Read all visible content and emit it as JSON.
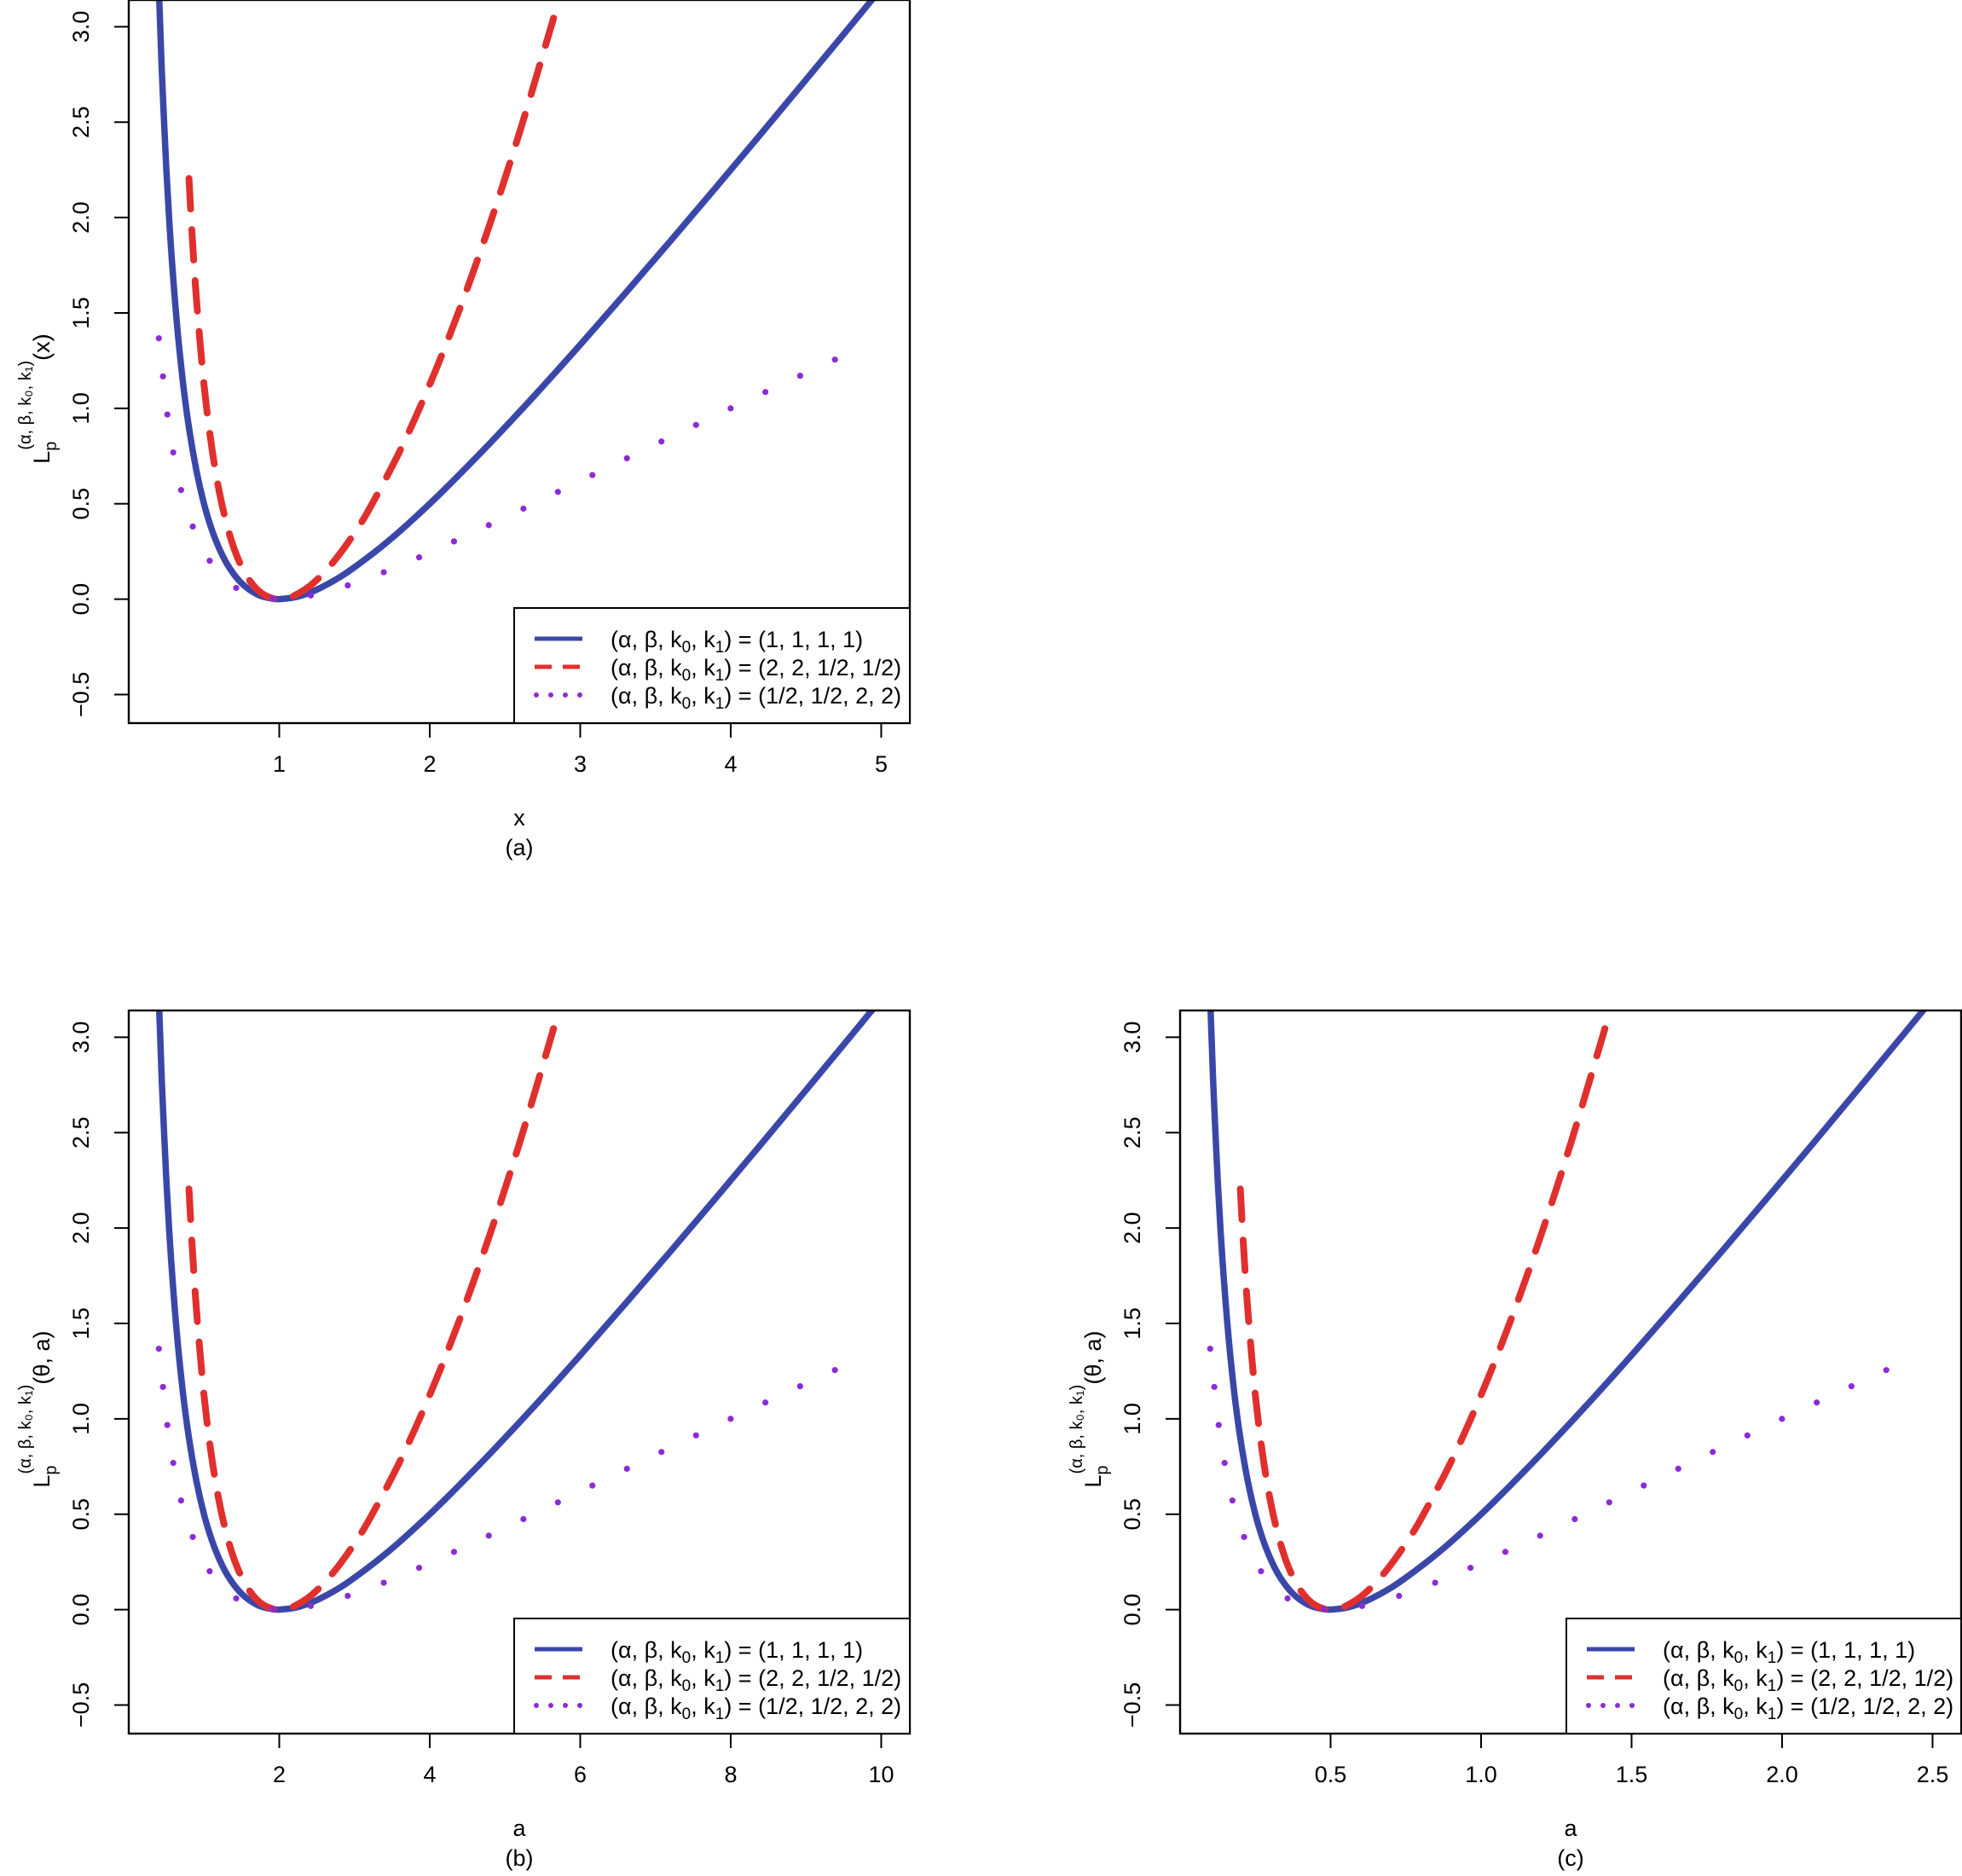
{
  "chart_data": [
    {
      "panel_label": "(a)",
      "type": "line",
      "xlabel": "x",
      "ylabel": {
        "main": "L",
        "sub": "p",
        "sup": "(α, β, k₀, k₁)",
        "arg": "(x)"
      },
      "xlim": [
        0.0,
        5.19
      ],
      "ylim": [
        -0.65,
        3.14
      ],
      "xticks": [
        1,
        2,
        3,
        4,
        5
      ],
      "xtick_labels": [
        "1",
        "2",
        "3",
        "4",
        "5"
      ],
      "yticks": [
        -0.5,
        0.0,
        0.5,
        1.0,
        1.5,
        2.0,
        2.5,
        3.0
      ],
      "ytick_labels": [
        "−0.5",
        "0.0",
        "0.5",
        "1.0",
        "1.5",
        "2.0",
        "2.5",
        "3.0"
      ],
      "grid": false,
      "legend_position": "bottom-right",
      "series": [
        {
          "name": "(α, β, k0, k1) = (1, 1, 1, 1)",
          "style": "solid",
          "color": "#3a47a9",
          "x": [
            0.19,
            0.2,
            0.22,
            0.25,
            0.28,
            0.32,
            0.36,
            0.4,
            0.45,
            0.5,
            0.55,
            0.6,
            0.65,
            0.7,
            0.75,
            0.8,
            0.85,
            0.9,
            0.95,
            1.0,
            1.1,
            1.2,
            1.3,
            1.4,
            1.5,
            1.7,
            1.9,
            2.1,
            2.4,
            2.7,
            3.0,
            3.3,
            3.6,
            3.9,
            4.2,
            4.5,
            4.8,
            5.1,
            5.15
          ],
          "y": [
            3.453,
            3.2,
            2.765,
            2.25,
            1.851,
            1.445,
            1.138,
            0.9,
            0.672,
            0.5,
            0.368,
            0.267,
            0.188,
            0.129,
            0.083,
            0.05,
            0.026,
            0.011,
            0.003,
            0.0,
            0.009,
            0.033,
            0.069,
            0.114,
            0.167,
            0.288,
            0.426,
            0.576,
            0.817,
            1.07,
            1.333,
            1.603,
            1.878,
            2.156,
            2.438,
            2.722,
            3.008,
            3.296,
            3.344
          ]
        },
        {
          "name": "(α, β, k0, k1) = (2, 2, 1/2, 1/2)",
          "style": "dashed",
          "color": "#e0302e",
          "x": [
            0.4,
            0.42,
            0.45,
            0.5,
            0.55,
            0.6,
            0.65,
            0.7,
            0.75,
            0.8,
            0.85,
            0.9,
            0.95,
            1.0,
            1.05,
            1.1,
            1.2,
            1.3,
            1.4,
            1.5,
            1.6,
            1.8,
            2.0,
            2.2,
            2.4,
            2.6,
            2.8,
            2.82
          ],
          "y": [
            2.205,
            1.923,
            1.571,
            1.125,
            0.804,
            0.569,
            0.395,
            0.265,
            0.17,
            0.101,
            0.053,
            0.022,
            0.005,
            0.0,
            0.004,
            0.018,
            0.067,
            0.141,
            0.235,
            0.347,
            0.475,
            0.774,
            1.125,
            1.523,
            1.967,
            2.454,
            2.984,
            3.04
          ]
        },
        {
          "name": "(α, β, k0, k1) = (1/2, 1/2, 2, 2)",
          "style": "dotted",
          "color": "#8b2bd6",
          "x": [
            0.2,
            0.25,
            0.3,
            0.35,
            0.4,
            0.5,
            0.6,
            0.7,
            0.8,
            0.9,
            1.0,
            1.2,
            1.4,
            1.6,
            1.8,
            2.0,
            2.5,
            3.0,
            3.5,
            4.0,
            4.5,
            4.9
          ],
          "y": [
            1.367,
            1.0,
            0.747,
            0.563,
            0.427,
            0.243,
            0.131,
            0.064,
            0.025,
            0.006,
            0.0,
            0.017,
            0.057,
            0.111,
            0.174,
            0.243,
            0.427,
            0.619,
            0.811,
            1.0,
            1.185,
            1.331
          ]
        }
      ]
    },
    {
      "panel_label": "(b)",
      "type": "line",
      "xlabel": "a",
      "ylabel": {
        "main": "L",
        "sub": "p",
        "sup": "(α, β, k₀, k₁)",
        "arg": "(θ, a)"
      },
      "xlim": [
        0.0,
        10.38
      ],
      "ylim": [
        -0.65,
        3.14
      ],
      "xticks": [
        2,
        4,
        6,
        8,
        10
      ],
      "xtick_labels": [
        "2",
        "4",
        "6",
        "8",
        "10"
      ],
      "yticks": [
        -0.5,
        0.0,
        0.5,
        1.0,
        1.5,
        2.0,
        2.5,
        3.0
      ],
      "ytick_labels": [
        "−0.5",
        "0.0",
        "0.5",
        "1.0",
        "1.5",
        "2.0",
        "2.5",
        "3.0"
      ],
      "grid": false,
      "legend_position": "bottom-right",
      "series": [
        {
          "name": "(α, β, k0, k1) = (1, 1, 1, 1)",
          "style": "solid",
          "color": "#3a47a9",
          "x": [
            0.38,
            0.4,
            0.44,
            0.5,
            0.56,
            0.64,
            0.72,
            0.8,
            0.9,
            1.0,
            1.1,
            1.2,
            1.3,
            1.4,
            1.5,
            1.6,
            1.7,
            1.8,
            1.9,
            2.0,
            2.2,
            2.4,
            2.6,
            2.8,
            3.0,
            3.4,
            3.8,
            4.2,
            4.8,
            5.4,
            6.0,
            6.6,
            7.2,
            7.8,
            8.4,
            9.0,
            9.6,
            10.2,
            10.3
          ],
          "y": [
            3.453,
            3.2,
            2.765,
            2.25,
            1.851,
            1.445,
            1.138,
            0.9,
            0.672,
            0.5,
            0.368,
            0.267,
            0.188,
            0.129,
            0.083,
            0.05,
            0.026,
            0.011,
            0.003,
            0.0,
            0.009,
            0.033,
            0.069,
            0.114,
            0.167,
            0.288,
            0.426,
            0.576,
            0.817,
            1.07,
            1.333,
            1.603,
            1.878,
            2.156,
            2.438,
            2.722,
            3.008,
            3.296,
            3.344
          ]
        },
        {
          "name": "(α, β, k0, k1) = (2, 2, 1/2, 1/2)",
          "style": "dashed",
          "color": "#e0302e",
          "x": [
            0.8,
            0.84,
            0.9,
            1.0,
            1.1,
            1.2,
            1.3,
            1.4,
            1.5,
            1.6,
            1.7,
            1.8,
            1.9,
            2.0,
            2.1,
            2.2,
            2.4,
            2.6,
            2.8,
            3.0,
            3.2,
            3.6,
            4.0,
            4.4,
            4.8,
            5.2,
            5.6,
            5.64
          ],
          "y": [
            2.205,
            1.923,
            1.571,
            1.125,
            0.804,
            0.569,
            0.395,
            0.265,
            0.17,
            0.101,
            0.053,
            0.022,
            0.005,
            0.0,
            0.004,
            0.018,
            0.067,
            0.141,
            0.235,
            0.347,
            0.475,
            0.774,
            1.125,
            1.523,
            1.967,
            2.454,
            2.984,
            3.04
          ]
        },
        {
          "name": "(α, β, k0, k1) = (1/2, 1/2, 2, 2)",
          "style": "dotted",
          "color": "#8b2bd6",
          "x": [
            0.4,
            0.5,
            0.6,
            0.7,
            0.8,
            1.0,
            1.2,
            1.4,
            1.6,
            1.8,
            2.0,
            2.4,
            2.8,
            3.2,
            3.6,
            4.0,
            5.0,
            6.0,
            7.0,
            8.0,
            9.0,
            9.8
          ],
          "y": [
            1.367,
            1.0,
            0.747,
            0.563,
            0.427,
            0.243,
            0.131,
            0.064,
            0.025,
            0.006,
            0.0,
            0.017,
            0.057,
            0.111,
            0.174,
            0.243,
            0.427,
            0.619,
            0.811,
            1.0,
            1.185,
            1.331
          ]
        }
      ]
    },
    {
      "panel_label": "(c)",
      "type": "line",
      "xlabel": "a",
      "ylabel": {
        "main": "L",
        "sub": "p",
        "sup": "(α, β, k₀, k₁)",
        "arg": "(θ, a)"
      },
      "xlim": [
        0.0,
        2.595
      ],
      "ylim": [
        -0.65,
        3.14
      ],
      "xticks": [
        0.5,
        1.0,
        1.5,
        2.0,
        2.5
      ],
      "xtick_labels": [
        "0.5",
        "1.0",
        "1.5",
        "2.0",
        "2.5"
      ],
      "yticks": [
        -0.5,
        0.0,
        0.5,
        1.0,
        1.5,
        2.0,
        2.5,
        3.0
      ],
      "ytick_labels": [
        "−0.5",
        "0.0",
        "0.5",
        "1.0",
        "1.5",
        "2.0",
        "2.5",
        "3.0"
      ],
      "grid": false,
      "legend_position": "bottom-right",
      "series": [
        {
          "name": "(α, β, k0, k1) = (1, 1, 1, 1)",
          "style": "solid",
          "color": "#3a47a9",
          "x": [
            0.095,
            0.1,
            0.11,
            0.125,
            0.14,
            0.16,
            0.18,
            0.2,
            0.225,
            0.25,
            0.275,
            0.3,
            0.325,
            0.35,
            0.375,
            0.4,
            0.425,
            0.45,
            0.475,
            0.5,
            0.55,
            0.6,
            0.65,
            0.7,
            0.75,
            0.85,
            0.95,
            1.05,
            1.2,
            1.35,
            1.5,
            1.65,
            1.8,
            1.95,
            2.1,
            2.25,
            2.4,
            2.55,
            2.575
          ],
          "y": [
            3.453,
            3.2,
            2.765,
            2.25,
            1.851,
            1.445,
            1.138,
            0.9,
            0.672,
            0.5,
            0.368,
            0.267,
            0.188,
            0.129,
            0.083,
            0.05,
            0.026,
            0.011,
            0.003,
            0.0,
            0.009,
            0.033,
            0.069,
            0.114,
            0.167,
            0.288,
            0.426,
            0.576,
            0.817,
            1.07,
            1.333,
            1.603,
            1.878,
            2.156,
            2.438,
            2.722,
            3.008,
            3.296,
            3.344
          ]
        },
        {
          "name": "(α, β, k0, k1) = (2, 2, 1/2, 1/2)",
          "style": "dashed",
          "color": "#e0302e",
          "x": [
            0.2,
            0.21,
            0.225,
            0.25,
            0.275,
            0.3,
            0.325,
            0.35,
            0.375,
            0.4,
            0.425,
            0.45,
            0.475,
            0.5,
            0.525,
            0.55,
            0.6,
            0.65,
            0.7,
            0.75,
            0.8,
            0.9,
            1.0,
            1.1,
            1.2,
            1.3,
            1.4,
            1.41
          ],
          "y": [
            2.205,
            1.923,
            1.571,
            1.125,
            0.804,
            0.569,
            0.395,
            0.265,
            0.17,
            0.101,
            0.053,
            0.022,
            0.005,
            0.0,
            0.004,
            0.018,
            0.067,
            0.141,
            0.235,
            0.347,
            0.475,
            0.774,
            1.125,
            1.523,
            1.967,
            2.454,
            2.984,
            3.04
          ]
        },
        {
          "name": "(α, β, k0, k1) = (1/2, 1/2, 2, 2)",
          "style": "dotted",
          "color": "#8b2bd6",
          "x": [
            0.1,
            0.125,
            0.15,
            0.175,
            0.2,
            0.25,
            0.3,
            0.35,
            0.4,
            0.45,
            0.5,
            0.6,
            0.7,
            0.8,
            0.9,
            1.0,
            1.25,
            1.5,
            1.75,
            2.0,
            2.25,
            2.45
          ],
          "y": [
            1.367,
            1.0,
            0.747,
            0.563,
            0.427,
            0.243,
            0.131,
            0.064,
            0.025,
            0.006,
            0.0,
            0.017,
            0.057,
            0.111,
            0.174,
            0.243,
            0.427,
            0.619,
            0.811,
            1.0,
            1.185,
            1.331
          ]
        }
      ]
    }
  ],
  "legend": {
    "entries": [
      {
        "prefix": "(α, β, k",
        "s0": "0",
        "mid": ", k",
        "s1": "1",
        "suffix": ") = (1, 1, 1, 1)"
      },
      {
        "prefix": "(α, β, k",
        "s0": "0",
        "mid": ", k",
        "s1": "1",
        "suffix": ") = (2, 2, 1/2, 1/2)"
      },
      {
        "prefix": "(α, β, k",
        "s0": "0",
        "mid": ", k",
        "s1": "1",
        "suffix": ") = (1/2, 1/2, 2, 2)"
      }
    ]
  }
}
